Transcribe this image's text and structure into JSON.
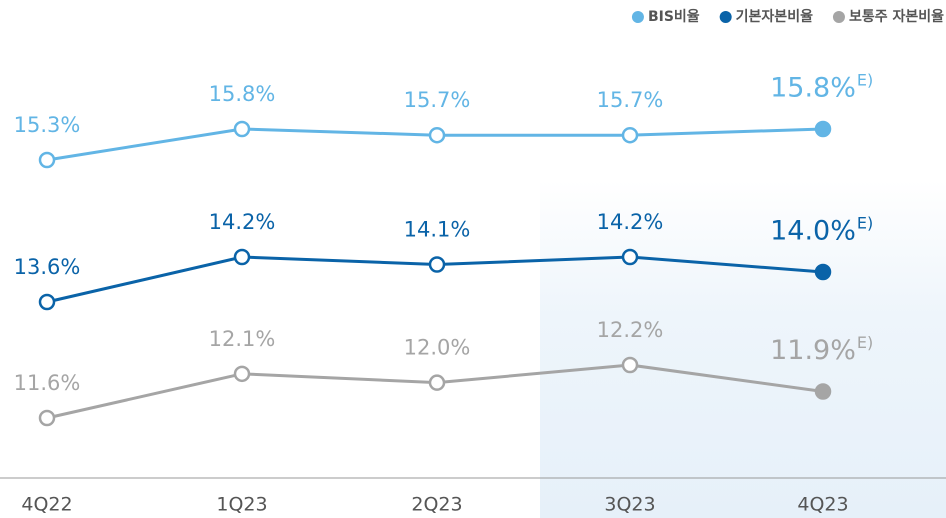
{
  "chart_data": {
    "type": "line",
    "categories": [
      "4Q22",
      "1Q23",
      "2Q23",
      "3Q23",
      "4Q23"
    ],
    "estimate_mark": "E)",
    "series": [
      {
        "name": "BIS비율",
        "color": "#62b5e5",
        "values": [
          15.3,
          15.8,
          15.7,
          15.7,
          15.8
        ],
        "value_labels": [
          "15.3%",
          "15.8%",
          "15.7%",
          "15.7%",
          "15.8%"
        ]
      },
      {
        "name": "기본자본비율",
        "color": "#0a63a8",
        "values": [
          13.6,
          14.2,
          14.1,
          14.2,
          14.0
        ],
        "value_labels": [
          "13.6%",
          "14.2%",
          "14.1%",
          "14.2%",
          "14.0%"
        ]
      },
      {
        "name": "보통주 자본비율",
        "color": "#a5a5a5",
        "values": [
          11.6,
          12.1,
          12.0,
          12.2,
          11.9
        ],
        "value_labels": [
          "11.6%",
          "12.1%",
          "12.0%",
          "12.2%",
          "11.9%"
        ]
      }
    ]
  }
}
